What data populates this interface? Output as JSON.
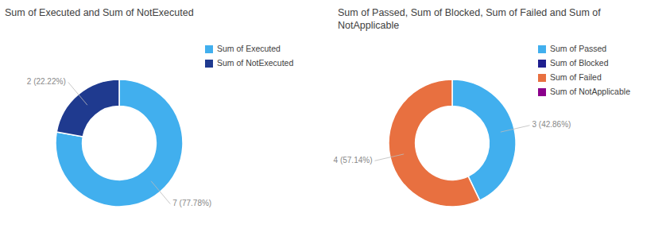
{
  "chart_data": [
    {
      "type": "donut",
      "title": "Sum of Executed and Sum of NotExecuted",
      "categories": [
        "Sum of Executed",
        "Sum of NotExecuted"
      ],
      "values": [
        7,
        2
      ],
      "colors": [
        "#41AFEE",
        "#1F3A8F"
      ],
      "data_labels": true,
      "value_labels": [
        "7 (77.78%)",
        "2 (22.22%)"
      ],
      "legend": "right"
    },
    {
      "type": "donut",
      "title": "Sum of Passed, Sum of Blocked, Sum of Failed and Sum of NotApplicable",
      "categories": [
        "Sum of Passed",
        "Sum of Blocked",
        "Sum of Failed",
        "Sum of NotApplicable"
      ],
      "values": [
        3,
        0,
        4,
        0
      ],
      "colors": [
        "#41AFEE",
        "#1F1F8F",
        "#E87040",
        "#8B008B"
      ],
      "data_labels": true,
      "value_labels": [
        "3 (42.86%)",
        null,
        "4 (57.14%)",
        null
      ],
      "legend": "right"
    }
  ]
}
